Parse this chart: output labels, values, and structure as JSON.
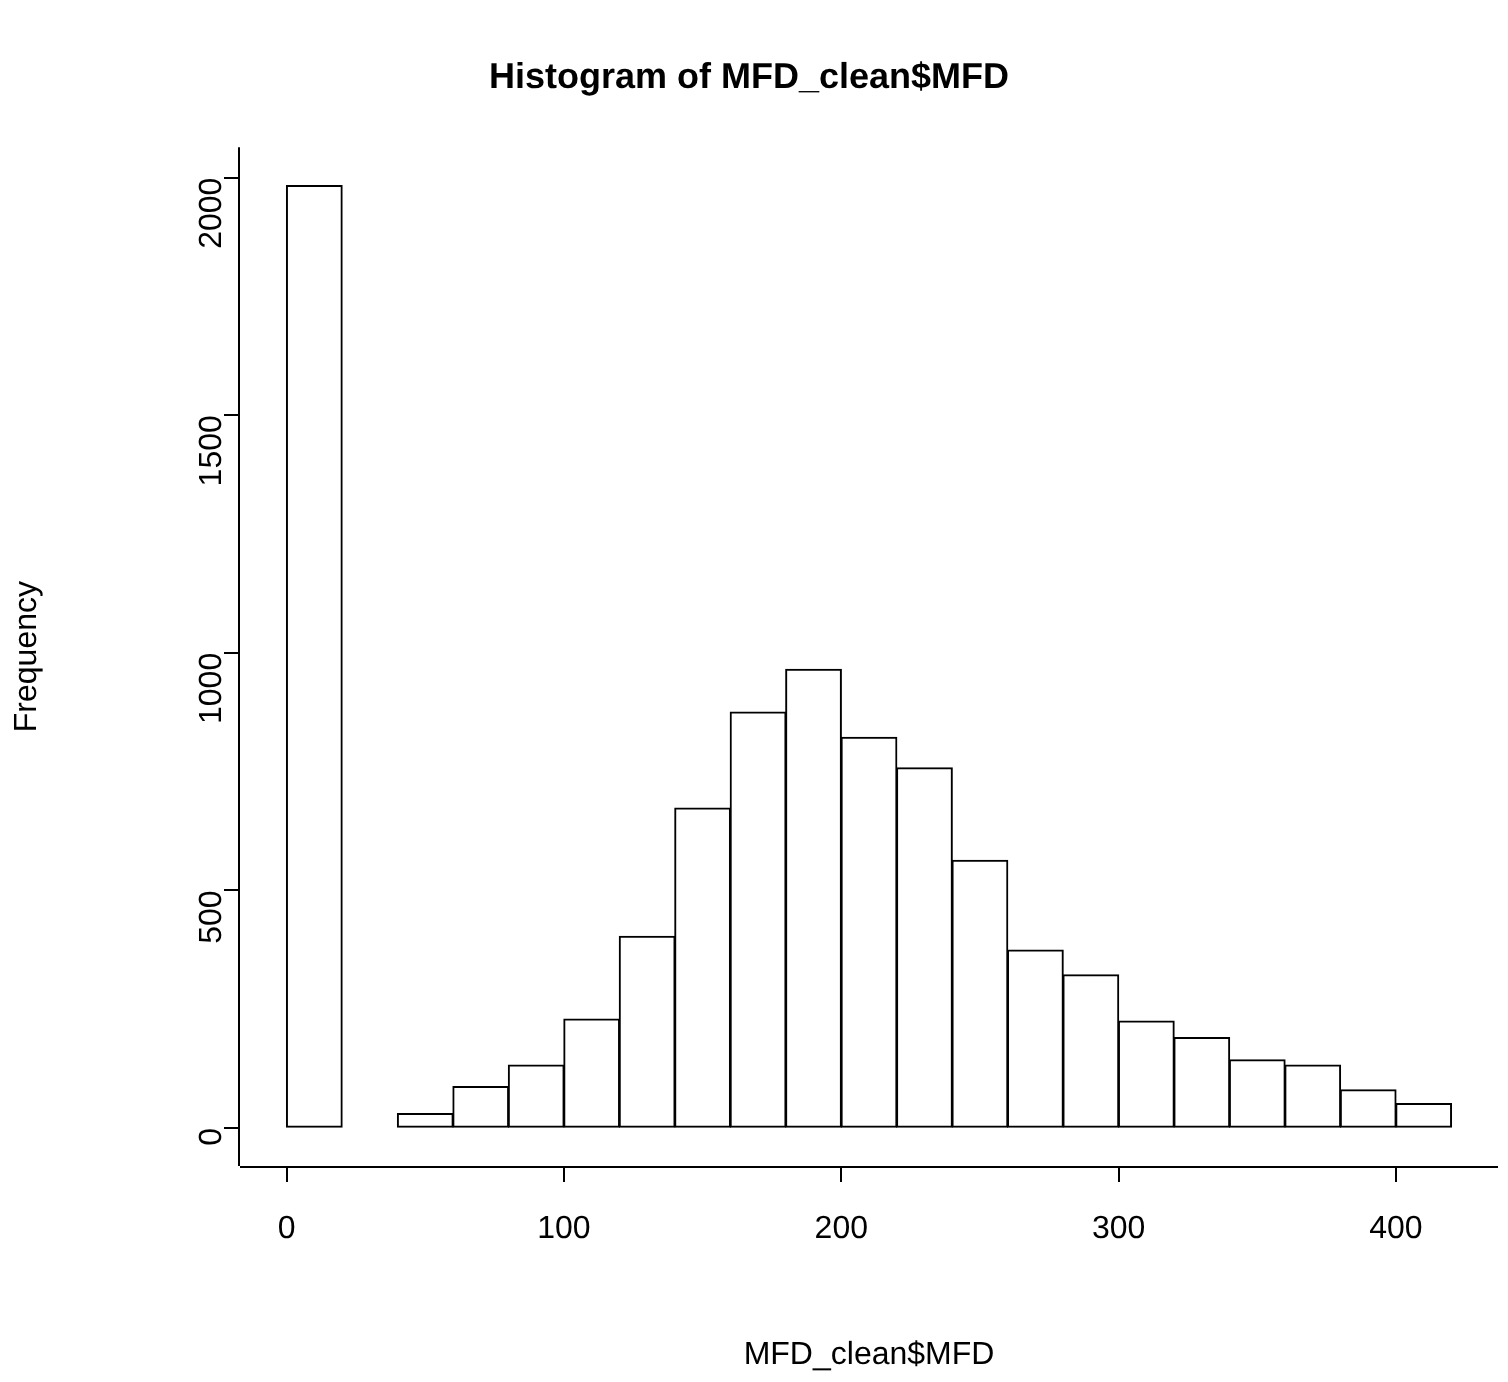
{
  "chart_data": {
    "type": "histogram",
    "title": "Histogram of MFD_clean$MFD",
    "xlabel": "MFD_clean$MFD",
    "ylabel": "Frequency",
    "bins": [
      0,
      20,
      40,
      60,
      80,
      100,
      120,
      140,
      160,
      180,
      200,
      220,
      240,
      260,
      280,
      300,
      320,
      340,
      360,
      380,
      400,
      420
    ],
    "values": [
      1983,
      0,
      30,
      87,
      132,
      229,
      403,
      673,
      875,
      965,
      822,
      758,
      563,
      374,
      322,
      225,
      190,
      143,
      132,
      80,
      51
    ],
    "color": "#ffffff",
    "xlim": [
      -16.8,
      436.8
    ],
    "xticks": [
      0,
      100,
      200,
      300,
      400
    ],
    "ylim": [
      -80,
      2064
    ],
    "yticks": [
      0,
      500,
      1000,
      1500,
      2000
    ]
  }
}
